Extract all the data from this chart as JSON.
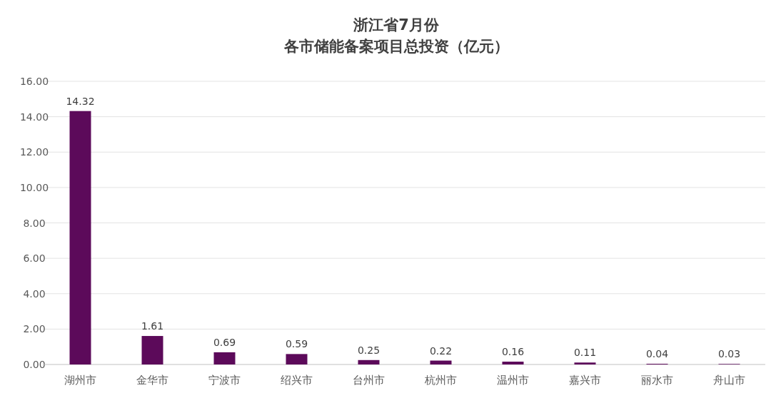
{
  "chart_data": {
    "type": "bar",
    "title": "浙江省7月份",
    "subtitle": "各市储能备案项目总投资（亿元）",
    "categories": [
      "湖州市",
      "金华市",
      "宁波市",
      "绍兴市",
      "台州市",
      "杭州市",
      "温州市",
      "嘉兴市",
      "丽水市",
      "舟山市"
    ],
    "values": [
      14.32,
      1.61,
      0.69,
      0.59,
      0.25,
      0.22,
      0.16,
      0.11,
      0.04,
      0.03
    ],
    "value_labels": [
      "14.32",
      "1.61",
      "0.69",
      "0.59",
      "0.25",
      "0.22",
      "0.16",
      "0.11",
      "0.04",
      "0.03"
    ],
    "color": "#5c0a5a",
    "ylim": [
      0,
      16
    ],
    "yticks": [
      {
        "value": 0,
        "label": "0.00"
      },
      {
        "value": 2,
        "label": "2.00"
      },
      {
        "value": 4,
        "label": "4.00"
      },
      {
        "value": 6,
        "label": "6.00"
      },
      {
        "value": 8,
        "label": "8.00"
      },
      {
        "value": 10,
        "label": "10.00"
      },
      {
        "value": 12,
        "label": "12.00"
      },
      {
        "value": 14,
        "label": "14.00"
      },
      {
        "value": 16,
        "label": "16.00"
      }
    ],
    "grid": "y"
  }
}
